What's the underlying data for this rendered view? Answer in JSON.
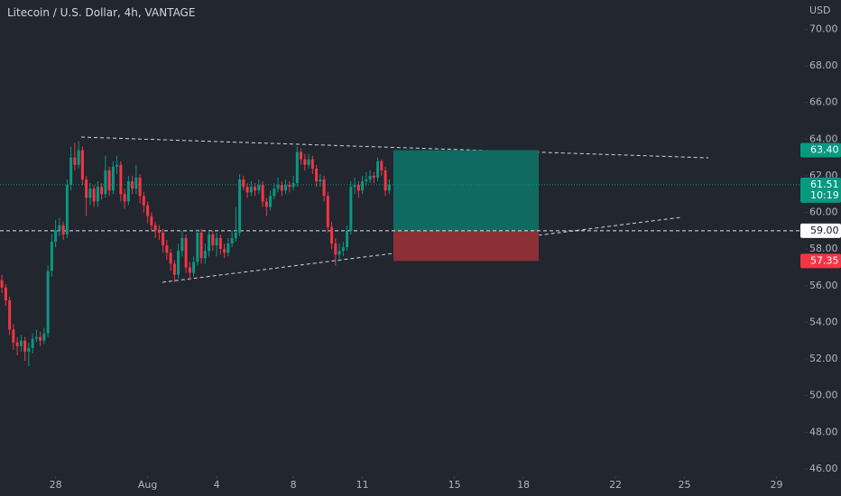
{
  "chart_data": {
    "type": "candlestick",
    "title": "Litecoin / U.S. Dollar, 4h, VANTAGE",
    "y_axis_label": "USD",
    "up_color": "#089981",
    "down_color": "#f23645",
    "open": [
      56.3,
      55.9,
      55.2,
      53.6,
      52.9,
      52.7,
      53.0,
      52.4,
      52.6,
      53.1,
      53.2,
      53.0,
      53.4,
      56.8,
      58.4,
      59.0,
      59.3,
      58.8,
      61.5,
      63.0,
      62.6,
      63.4,
      61.8,
      60.8,
      61.3,
      60.6,
      61.4,
      61.0,
      62.3,
      61.2,
      62.5,
      62.6,
      61.0,
      60.6,
      61.7,
      61.3,
      61.9,
      60.9,
      60.4,
      59.8,
      59.3,
      59.0,
      58.9,
      58.2,
      57.8,
      57.2,
      56.6,
      57.9,
      58.6,
      57.0,
      56.7,
      57.3,
      58.9,
      57.5,
      57.9,
      58.8,
      58.2,
      58.6,
      58.0,
      57.8,
      58.3,
      58.6,
      58.9,
      61.8,
      61.4,
      61.1,
      61.4,
      61.2,
      61.5,
      60.6,
      60.3,
      60.9,
      61.3,
      61.5,
      61.2,
      61.5,
      61.4,
      61.6,
      63.3,
      62.9,
      62.6,
      62.9,
      62.4,
      61.7,
      61.8,
      60.9,
      59.2,
      58.3,
      57.7,
      57.9,
      58.1,
      59.0,
      61.4,
      61.5,
      61.2,
      61.7,
      61.8,
      62.0,
      61.9,
      62.8,
      62.3,
      61.2
    ],
    "high": [
      56.6,
      56.1,
      55.4,
      53.9,
      53.2,
      53.3,
      53.2,
      52.9,
      53.4,
      53.6,
      53.5,
      53.7,
      57.1,
      58.8,
      59.6,
      59.7,
      59.5,
      61.8,
      63.6,
      63.8,
      63.9,
      63.6,
      62.0,
      61.6,
      61.5,
      61.7,
      61.6,
      63.1,
      62.5,
      62.8,
      63.1,
      62.8,
      61.3,
      62.0,
      62.0,
      62.6,
      62.1,
      61.1,
      60.6,
      60.0,
      59.5,
      59.3,
      59.1,
      58.5,
      58.0,
      57.4,
      58.3,
      59.0,
      58.8,
      57.3,
      57.6,
      59.1,
      59.1,
      58.3,
      59.0,
      59.0,
      58.9,
      58.8,
      58.3,
      58.6,
      59.0,
      60.3,
      62.1,
      62.0,
      61.6,
      61.7,
      61.6,
      61.8,
      61.7,
      60.8,
      61.2,
      61.6,
      61.9,
      61.7,
      61.8,
      61.7,
      62.0,
      63.6,
      63.5,
      63.2,
      63.2,
      63.1,
      62.6,
      62.1,
      62.0,
      61.1,
      59.5,
      58.6,
      58.3,
      58.4,
      59.3,
      61.7,
      61.9,
      61.7,
      62.0,
      62.2,
      62.3,
      62.2,
      63.0,
      62.9,
      62.5,
      61.8
    ],
    "low": [
      55.6,
      54.9,
      53.3,
      52.5,
      52.2,
      52.4,
      51.9,
      51.6,
      52.3,
      52.9,
      52.7,
      52.8,
      53.2,
      56.5,
      58.1,
      58.7,
      58.5,
      58.6,
      61.2,
      62.3,
      62.4,
      61.5,
      59.8,
      60.4,
      60.3,
      60.3,
      60.7,
      60.8,
      60.9,
      61.0,
      62.1,
      60.6,
      60.2,
      60.4,
      61.0,
      61.0,
      60.5,
      60.0,
      59.4,
      59.0,
      58.6,
      58.5,
      57.8,
      57.4,
      56.8,
      56.2,
      56.4,
      57.6,
      56.7,
      56.3,
      56.5,
      57.1,
      57.2,
      57.2,
      57.6,
      57.9,
      57.6,
      57.7,
      57.5,
      57.6,
      58.1,
      58.4,
      58.7,
      61.2,
      60.8,
      60.9,
      60.9,
      61.0,
      60.3,
      59.8,
      60.1,
      60.7,
      61.1,
      60.9,
      61.0,
      61.1,
      61.2,
      61.4,
      62.6,
      62.3,
      62.4,
      62.1,
      61.4,
      61.4,
      60.6,
      58.9,
      58.0,
      57.1,
      57.3,
      57.6,
      57.9,
      58.8,
      61.0,
      60.8,
      61.0,
      61.5,
      61.6,
      61.6,
      61.7,
      62.0,
      60.9,
      61.0
    ],
    "close": [
      55.9,
      55.2,
      53.6,
      52.9,
      52.7,
      53.0,
      52.4,
      52.6,
      53.1,
      53.2,
      53.0,
      53.4,
      56.8,
      58.4,
      59.0,
      59.3,
      58.8,
      61.5,
      63.0,
      62.6,
      63.4,
      61.8,
      60.8,
      61.3,
      60.6,
      61.4,
      61.0,
      62.3,
      61.2,
      62.5,
      62.6,
      61.0,
      60.6,
      61.7,
      61.3,
      61.9,
      60.9,
      60.4,
      59.8,
      59.3,
      59.0,
      58.9,
      58.2,
      57.8,
      57.2,
      56.6,
      57.9,
      58.6,
      57.0,
      56.7,
      57.3,
      58.9,
      57.5,
      57.9,
      58.8,
      58.2,
      58.6,
      58.0,
      57.8,
      58.3,
      58.6,
      58.9,
      61.8,
      61.4,
      61.1,
      61.4,
      61.2,
      61.5,
      60.6,
      60.3,
      60.9,
      61.3,
      61.5,
      61.2,
      61.5,
      61.4,
      61.6,
      63.3,
      62.9,
      62.6,
      62.9,
      62.4,
      61.7,
      61.8,
      60.9,
      59.2,
      58.3,
      57.7,
      57.9,
      58.1,
      59.0,
      61.4,
      61.5,
      61.2,
      61.7,
      61.8,
      62.0,
      61.9,
      62.8,
      62.3,
      61.2,
      61.51
    ],
    "last_price_label": "61.51",
    "countdown": "10:19",
    "position": {
      "target": {
        "value": 63.4,
        "label": "63.40"
      },
      "entry": {
        "value": 59,
        "label": "59.00"
      },
      "stop": {
        "value": 57.35,
        "label": "57.35"
      }
    },
    "ylim": [
      45.6,
      71.6
    ],
    "yticks": [
      {
        "value": 46,
        "label": "46.00"
      },
      {
        "value": 48,
        "label": "48.00"
      },
      {
        "value": 50,
        "label": "50.00"
      },
      {
        "value": 52,
        "label": "52.00"
      },
      {
        "value": 54,
        "label": "54.00"
      },
      {
        "value": 56,
        "label": "56.00"
      },
      {
        "value": 58,
        "label": "58.00"
      },
      {
        "value": 60,
        "label": "60.00"
      },
      {
        "value": 62,
        "label": "62.00"
      },
      {
        "value": 64,
        "label": "64.00"
      },
      {
        "value": 66,
        "label": "66.00"
      },
      {
        "value": 68,
        "label": "68.00"
      },
      {
        "value": 70,
        "label": "70.00"
      }
    ],
    "xlim": [
      -0.5,
      209.4
    ],
    "xticks": [
      {
        "value": 14,
        "label": "28"
      },
      {
        "value": 38,
        "label": "Aug"
      },
      {
        "value": 56,
        "label": "4"
      },
      {
        "value": 76,
        "label": "8"
      },
      {
        "value": 94,
        "label": "11"
      },
      {
        "value": 118,
        "label": "15"
      },
      {
        "value": 136,
        "label": "18"
      },
      {
        "value": 160,
        "label": "22"
      },
      {
        "value": 178,
        "label": "25"
      },
      {
        "value": 202,
        "label": "29"
      }
    ]
  }
}
